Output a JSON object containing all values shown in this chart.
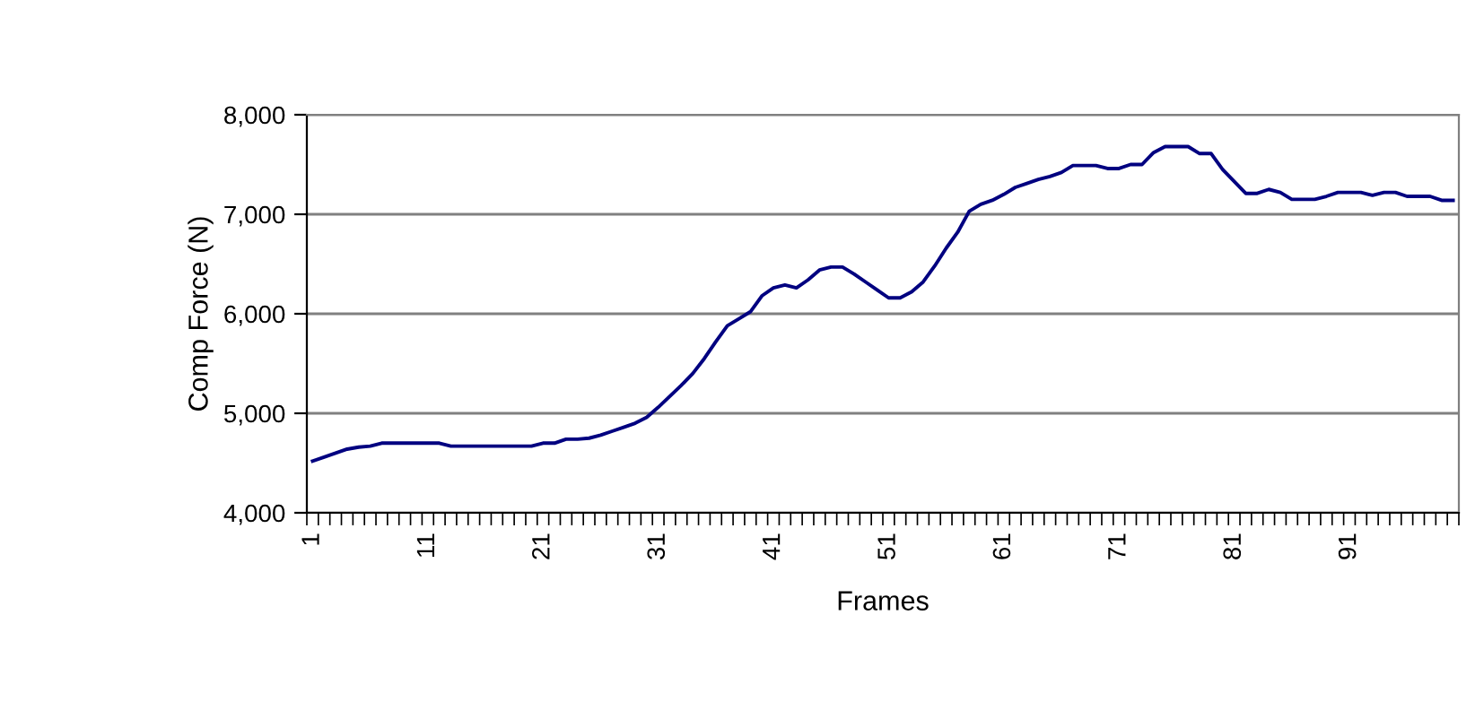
{
  "chart_data": {
    "type": "line",
    "xlabel": "Frames",
    "ylabel": "Comp Force (N)",
    "categories": [
      "1",
      null,
      null,
      null,
      null,
      null,
      null,
      null,
      null,
      null,
      "11",
      null,
      null,
      null,
      null,
      null,
      null,
      null,
      null,
      null,
      "21",
      null,
      null,
      null,
      null,
      null,
      null,
      null,
      null,
      null,
      "31",
      null,
      null,
      null,
      null,
      null,
      null,
      null,
      null,
      null,
      "41",
      null,
      null,
      null,
      null,
      null,
      null,
      null,
      null,
      null,
      "51",
      null,
      null,
      null,
      null,
      null,
      null,
      null,
      null,
      null,
      "61",
      null,
      null,
      null,
      null,
      null,
      null,
      null,
      null,
      null,
      "71",
      null,
      null,
      null,
      null,
      null,
      null,
      null,
      null,
      null,
      "81",
      null,
      null,
      null,
      null,
      null,
      null,
      null,
      null,
      null,
      "91",
      null,
      null,
      null,
      null,
      null,
      null,
      null,
      null,
      null
    ],
    "series": [
      {
        "color": "#000080",
        "values": [
          4520,
          4560,
          4600,
          4640,
          4660,
          4670,
          4700,
          4700,
          4700,
          4700,
          4700,
          4700,
          4670,
          4670,
          4670,
          4670,
          4670,
          4670,
          4670,
          4670,
          4700,
          4700,
          4740,
          4740,
          4750,
          4780,
          4820,
          4860,
          4900,
          4960,
          5060,
          5170,
          5280,
          5400,
          5550,
          5720,
          5880,
          5950,
          6020,
          6180,
          6260,
          6290,
          6260,
          6340,
          6440,
          6470,
          6470,
          6400,
          6320,
          6240,
          6160,
          6160,
          6220,
          6320,
          6480,
          6660,
          6820,
          7030,
          7100,
          7140,
          7200,
          7270,
          7310,
          7350,
          7380,
          7420,
          7490,
          7490,
          7490,
          7460,
          7460,
          7500,
          7500,
          7620,
          7680,
          7680,
          7680,
          7610,
          7610,
          7450,
          7330,
          7210,
          7210,
          7250,
          7220,
          7150,
          7150,
          7150,
          7180,
          7220,
          7220,
          7220,
          7190,
          7220,
          7220,
          7180,
          7180,
          7180,
          7140,
          7140
        ]
      }
    ],
    "ylim": [
      4000,
      8000
    ],
    "yticks": [
      {
        "value": 4000,
        "label": "4,000"
      },
      {
        "value": 5000,
        "label": "5,000"
      },
      {
        "value": 6000,
        "label": "6,000"
      },
      {
        "value": 7000,
        "label": "7,000"
      },
      {
        "value": 8000,
        "label": "8,000"
      }
    ],
    "grid": "y",
    "legend": false,
    "marker": "none",
    "line_style": "solid"
  }
}
